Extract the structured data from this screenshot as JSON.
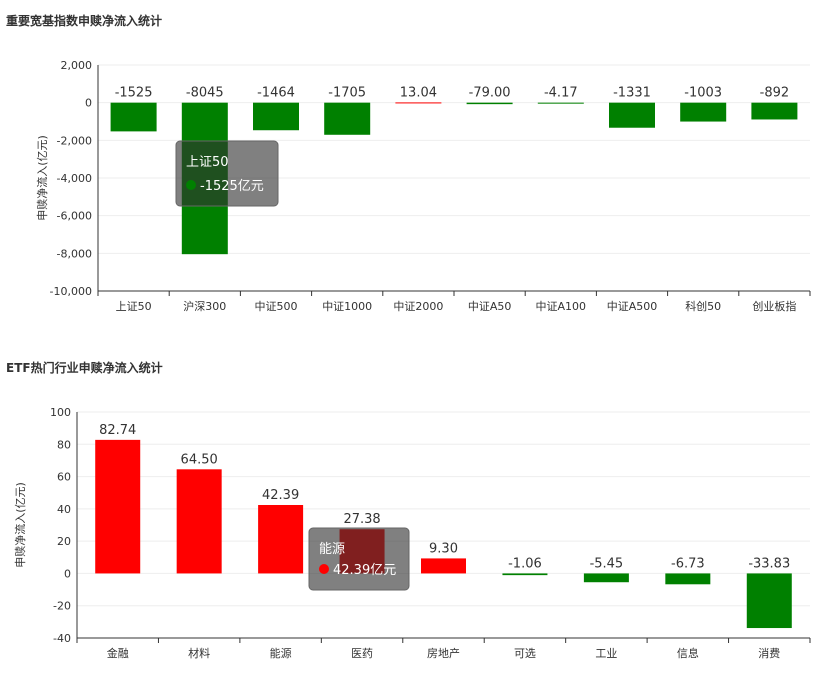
{
  "panels": [
    {
      "title": "重要宽基指数申赎净流入统计"
    },
    {
      "title": "ETF热门行业申赎净流入统计"
    }
  ],
  "chart_data": [
    {
      "type": "bar",
      "title": "重要宽基指数申赎净流入统计",
      "ylabel": "申赎净流入(亿元)",
      "ylim": [
        -10000,
        2000
      ],
      "yticks": [
        "2,000",
        "0",
        "-2,000",
        "-4,000",
        "-6,000",
        "-8,000",
        "-10,000"
      ],
      "ytick_values": [
        2000,
        0,
        -2000,
        -4000,
        -6000,
        -8000,
        -10000
      ],
      "categories": [
        "上证50",
        "沪深300",
        "中证500",
        "中证1000",
        "中证2000",
        "中证A50",
        "中证A100",
        "中证A500",
        "科创50",
        "创业板指"
      ],
      "values": [
        -1525,
        -8045,
        -1464,
        -1705,
        13.04,
        -79.0,
        -4.17,
        -1331,
        -1003,
        -892
      ],
      "labels": [
        "-1525",
        "-8045",
        "-1464",
        "-1705",
        "13.04",
        "-79.00",
        "-4.17",
        "-1331",
        "-1003",
        "-892"
      ],
      "colors": {
        "positive": "#ff0000",
        "negative": "#008000"
      },
      "grid": true,
      "tooltip": {
        "category": "上证50",
        "value": "-1525亿元"
      }
    },
    {
      "type": "bar",
      "title": "ETF热门行业申赎净流入统计",
      "ylabel": "申赎净流入(亿元)",
      "ylim": [
        -40,
        100
      ],
      "yticks": [
        "100",
        "80",
        "60",
        "40",
        "20",
        "0",
        "-20",
        "-40"
      ],
      "ytick_values": [
        100,
        80,
        60,
        40,
        20,
        0,
        -20,
        -40
      ],
      "categories": [
        "金融",
        "材料",
        "能源",
        "医药",
        "房地产",
        "可选",
        "工业",
        "信息",
        "消费"
      ],
      "values": [
        82.74,
        64.5,
        42.39,
        27.38,
        9.3,
        -1.06,
        -5.45,
        -6.73,
        -33.83
      ],
      "labels": [
        "82.74",
        "64.50",
        "42.39",
        "27.38",
        "9.30",
        "-1.06",
        "-5.45",
        "-6.73",
        "-33.83"
      ],
      "colors": {
        "positive": "#ff0000",
        "negative": "#008000"
      },
      "grid": true,
      "tooltip": {
        "category": "能源",
        "value": "42.39亿元"
      }
    }
  ]
}
